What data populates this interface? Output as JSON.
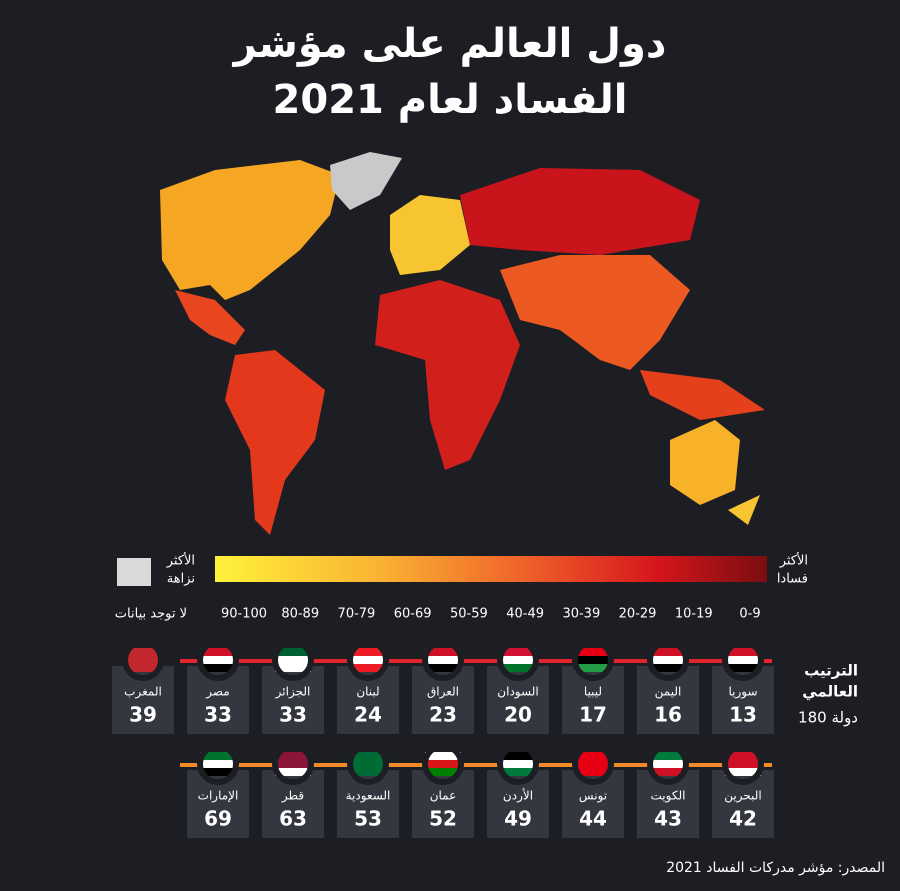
{
  "header": {
    "title_line1": "دول العالم على مؤشر",
    "title_line2": "الفساد لعام 2021"
  },
  "legend": {
    "least_corrupt": [
      "الأكثر",
      "نزاهة"
    ],
    "most_corrupt": [
      "الأكثر",
      "فسادا"
    ],
    "no_data": "لا توجد بيانات",
    "ranges": [
      "90-100",
      "80-89",
      "70-79",
      "60-69",
      "50-59",
      "40-49",
      "30-39",
      "20-29",
      "10-19",
      "0-9"
    ]
  },
  "ranking": {
    "label": [
      "الترتيب",
      "العالمي"
    ],
    "total": "180 دولة"
  },
  "rows": [
    [
      {
        "name": "سوريا",
        "score": "13"
      },
      {
        "name": "اليمن",
        "score": "16"
      },
      {
        "name": "ليبيا",
        "score": "17"
      },
      {
        "name": "السودان",
        "score": "20"
      },
      {
        "name": "العراق",
        "score": "23"
      },
      {
        "name": "لبنان",
        "score": "24"
      },
      {
        "name": "الجزائر",
        "score": "33"
      },
      {
        "name": "مصر",
        "score": "33"
      },
      {
        "name": "المغرب",
        "score": "39"
      }
    ],
    [
      {
        "name": "البحرين",
        "score": "42"
      },
      {
        "name": "الكويت",
        "score": "43"
      },
      {
        "name": "تونس",
        "score": "44"
      },
      {
        "name": "الأردن",
        "score": "49"
      },
      {
        "name": "عمان",
        "score": "52"
      },
      {
        "name": "السعودية",
        "score": "53"
      },
      {
        "name": "قطر",
        "score": "63"
      },
      {
        "name": "الإمارات",
        "score": "69"
      }
    ]
  ],
  "source": "المصدر: مؤشر مدركات الفساد 2021"
}
